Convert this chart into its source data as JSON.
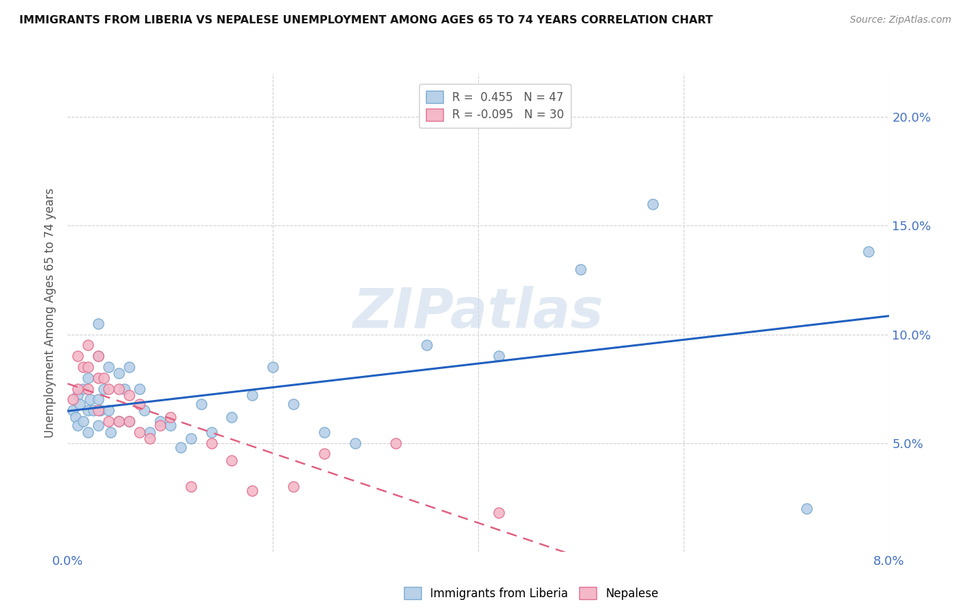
{
  "title": "IMMIGRANTS FROM LIBERIA VS NEPALESE UNEMPLOYMENT AMONG AGES 65 TO 74 YEARS CORRELATION CHART",
  "source": "Source: ZipAtlas.com",
  "xlabel": "",
  "ylabel": "Unemployment Among Ages 65 to 74 years",
  "xlim": [
    0.0,
    0.08
  ],
  "ylim": [
    0.0,
    0.22
  ],
  "yticks": [
    0.0,
    0.05,
    0.1,
    0.15,
    0.2
  ],
  "ytick_labels": [
    "",
    "5.0%",
    "10.0%",
    "15.0%",
    "20.0%"
  ],
  "xticks": [
    0.0,
    0.02,
    0.04,
    0.06,
    0.08
  ],
  "xtick_labels": [
    "0.0%",
    "",
    "",
    "",
    "8.0%"
  ],
  "watermark": "ZIPatlas",
  "liberia_color": "#b8d0e8",
  "liberia_edge": "#7aaad0",
  "nepalese_color": "#f4b8c8",
  "nepalese_edge": "#e07090",
  "liberia_line_color": "#2060c0",
  "nepalese_line_color": "#e06080",
  "background_color": "#ffffff",
  "grid_color": "#d0d0d0",
  "liberia_points_x": [
    0.0005,
    0.0008,
    0.001,
    0.001,
    0.0012,
    0.0015,
    0.0015,
    0.002,
    0.002,
    0.002,
    0.0022,
    0.0025,
    0.003,
    0.003,
    0.003,
    0.003,
    0.0032,
    0.0035,
    0.004,
    0.004,
    0.0042,
    0.005,
    0.005,
    0.0055,
    0.006,
    0.006,
    0.007,
    0.0075,
    0.008,
    0.009,
    0.01,
    0.011,
    0.012,
    0.013,
    0.014,
    0.016,
    0.018,
    0.02,
    0.022,
    0.025,
    0.028,
    0.035,
    0.042,
    0.05,
    0.057,
    0.072,
    0.078
  ],
  "liberia_points_y": [
    0.065,
    0.062,
    0.072,
    0.058,
    0.068,
    0.075,
    0.06,
    0.065,
    0.08,
    0.055,
    0.07,
    0.065,
    0.105,
    0.09,
    0.07,
    0.058,
    0.065,
    0.075,
    0.085,
    0.065,
    0.055,
    0.082,
    0.06,
    0.075,
    0.085,
    0.06,
    0.075,
    0.065,
    0.055,
    0.06,
    0.058,
    0.048,
    0.052,
    0.068,
    0.055,
    0.062,
    0.072,
    0.085,
    0.068,
    0.055,
    0.05,
    0.095,
    0.09,
    0.13,
    0.16,
    0.02,
    0.138
  ],
  "nepalese_points_x": [
    0.0005,
    0.001,
    0.001,
    0.0015,
    0.002,
    0.002,
    0.002,
    0.003,
    0.003,
    0.003,
    0.0035,
    0.004,
    0.004,
    0.005,
    0.005,
    0.006,
    0.006,
    0.007,
    0.007,
    0.008,
    0.009,
    0.01,
    0.012,
    0.014,
    0.016,
    0.018,
    0.022,
    0.025,
    0.032,
    0.042
  ],
  "nepalese_points_y": [
    0.07,
    0.09,
    0.075,
    0.085,
    0.095,
    0.085,
    0.075,
    0.09,
    0.08,
    0.065,
    0.08,
    0.075,
    0.06,
    0.075,
    0.06,
    0.072,
    0.06,
    0.068,
    0.055,
    0.052,
    0.058,
    0.062,
    0.03,
    0.05,
    0.042,
    0.028,
    0.03,
    0.045,
    0.05,
    0.018
  ],
  "liberia_legend": "R =  0.455   N = 47",
  "nepalese_legend": "R = -0.095   N = 30",
  "bottom_legend_liberia": "Immigrants from Liberia",
  "bottom_legend_nepalese": "Nepalese"
}
